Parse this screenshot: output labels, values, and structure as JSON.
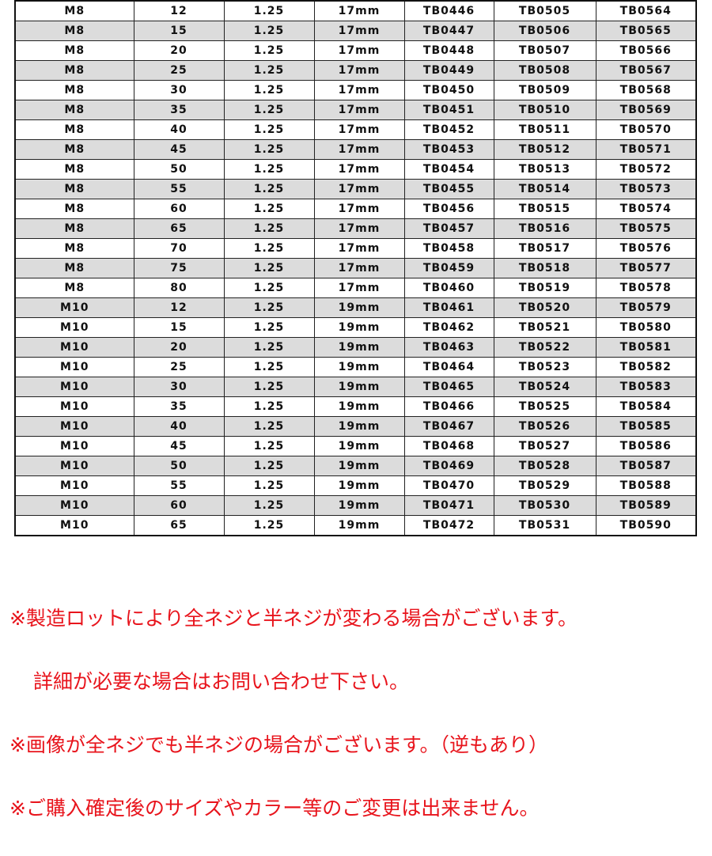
{
  "table": {
    "rows": [
      [
        "M8",
        "12",
        "1.25",
        "17mm",
        "TB0446",
        "TB0505",
        "TB0564"
      ],
      [
        "M8",
        "15",
        "1.25",
        "17mm",
        "TB0447",
        "TB0506",
        "TB0565"
      ],
      [
        "M8",
        "20",
        "1.25",
        "17mm",
        "TB0448",
        "TB0507",
        "TB0566"
      ],
      [
        "M8",
        "25",
        "1.25",
        "17mm",
        "TB0449",
        "TB0508",
        "TB0567"
      ],
      [
        "M8",
        "30",
        "1.25",
        "17mm",
        "TB0450",
        "TB0509",
        "TB0568"
      ],
      [
        "M8",
        "35",
        "1.25",
        "17mm",
        "TB0451",
        "TB0510",
        "TB0569"
      ],
      [
        "M8",
        "40",
        "1.25",
        "17mm",
        "TB0452",
        "TB0511",
        "TB0570"
      ],
      [
        "M8",
        "45",
        "1.25",
        "17mm",
        "TB0453",
        "TB0512",
        "TB0571"
      ],
      [
        "M8",
        "50",
        "1.25",
        "17mm",
        "TB0454",
        "TB0513",
        "TB0572"
      ],
      [
        "M8",
        "55",
        "1.25",
        "17mm",
        "TB0455",
        "TB0514",
        "TB0573"
      ],
      [
        "M8",
        "60",
        "1.25",
        "17mm",
        "TB0456",
        "TB0515",
        "TB0574"
      ],
      [
        "M8",
        "65",
        "1.25",
        "17mm",
        "TB0457",
        "TB0516",
        "TB0575"
      ],
      [
        "M8",
        "70",
        "1.25",
        "17mm",
        "TB0458",
        "TB0517",
        "TB0576"
      ],
      [
        "M8",
        "75",
        "1.25",
        "17mm",
        "TB0459",
        "TB0518",
        "TB0577"
      ],
      [
        "M8",
        "80",
        "1.25",
        "17mm",
        "TB0460",
        "TB0519",
        "TB0578"
      ],
      [
        "M10",
        "12",
        "1.25",
        "19mm",
        "TB0461",
        "TB0520",
        "TB0579"
      ],
      [
        "M10",
        "15",
        "1.25",
        "19mm",
        "TB0462",
        "TB0521",
        "TB0580"
      ],
      [
        "M10",
        "20",
        "1.25",
        "19mm",
        "TB0463",
        "TB0522",
        "TB0581"
      ],
      [
        "M10",
        "25",
        "1.25",
        "19mm",
        "TB0464",
        "TB0523",
        "TB0582"
      ],
      [
        "M10",
        "30",
        "1.25",
        "19mm",
        "TB0465",
        "TB0524",
        "TB0583"
      ],
      [
        "M10",
        "35",
        "1.25",
        "19mm",
        "TB0466",
        "TB0525",
        "TB0584"
      ],
      [
        "M10",
        "40",
        "1.25",
        "19mm",
        "TB0467",
        "TB0526",
        "TB0585"
      ],
      [
        "M10",
        "45",
        "1.25",
        "19mm",
        "TB0468",
        "TB0527",
        "TB0586"
      ],
      [
        "M10",
        "50",
        "1.25",
        "19mm",
        "TB0469",
        "TB0528",
        "TB0587"
      ],
      [
        "M10",
        "55",
        "1.25",
        "19mm",
        "TB0470",
        "TB0529",
        "TB0588"
      ],
      [
        "M10",
        "60",
        "1.25",
        "19mm",
        "TB0471",
        "TB0530",
        "TB0589"
      ],
      [
        "M10",
        "65",
        "1.25",
        "19mm",
        "TB0472",
        "TB0531",
        "TB0590"
      ]
    ]
  },
  "notes": [
    "※製造ロットにより全ネジと半ネジが変わる場合がございます。",
    "詳細が必要な場合はお問い合わせ下さい。",
    "※画像が全ネジでも半ネジの場合がございます。（逆もあり）",
    "※ご購入確定後のサイズやカラー等のご変更は出来ません。"
  ],
  "colors": {
    "note": "#e8141c",
    "alt_row": "#dcdcdc"
  }
}
